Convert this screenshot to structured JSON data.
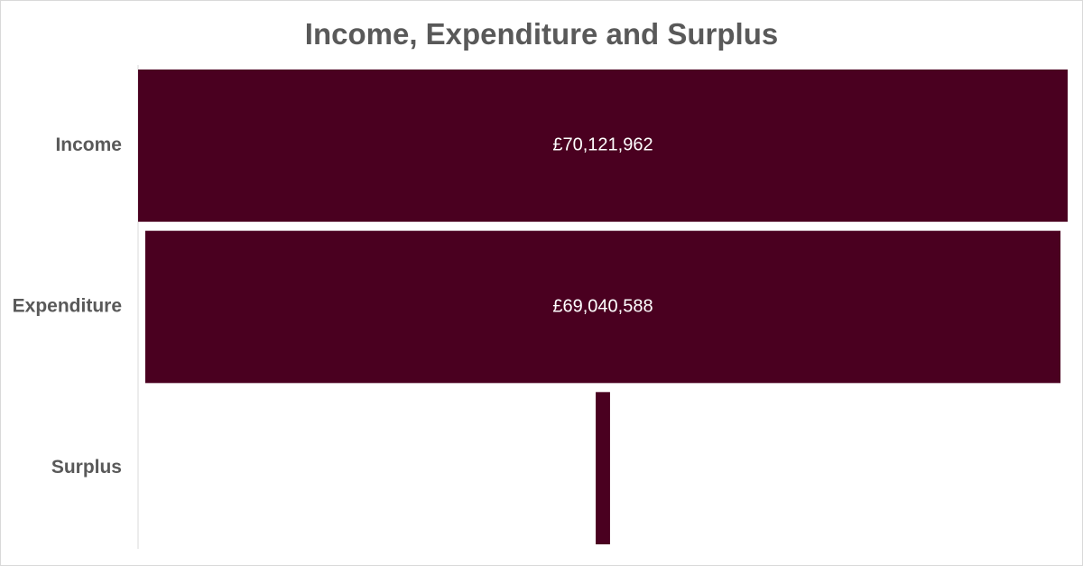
{
  "chart_data": {
    "type": "bar",
    "subtype": "funnel",
    "orientation": "horizontal",
    "title": "Income, Expenditure and Surplus",
    "xlabel": "",
    "ylabel": "",
    "categories": [
      "Income",
      "Expenditure",
      "Surplus"
    ],
    "values": [
      70121962,
      69040588,
      1081374
    ],
    "data_labels": [
      "£70,121,962",
      "£69,040,588",
      ""
    ],
    "bar_color": "#4a0020",
    "grid": false,
    "legend": "none"
  }
}
